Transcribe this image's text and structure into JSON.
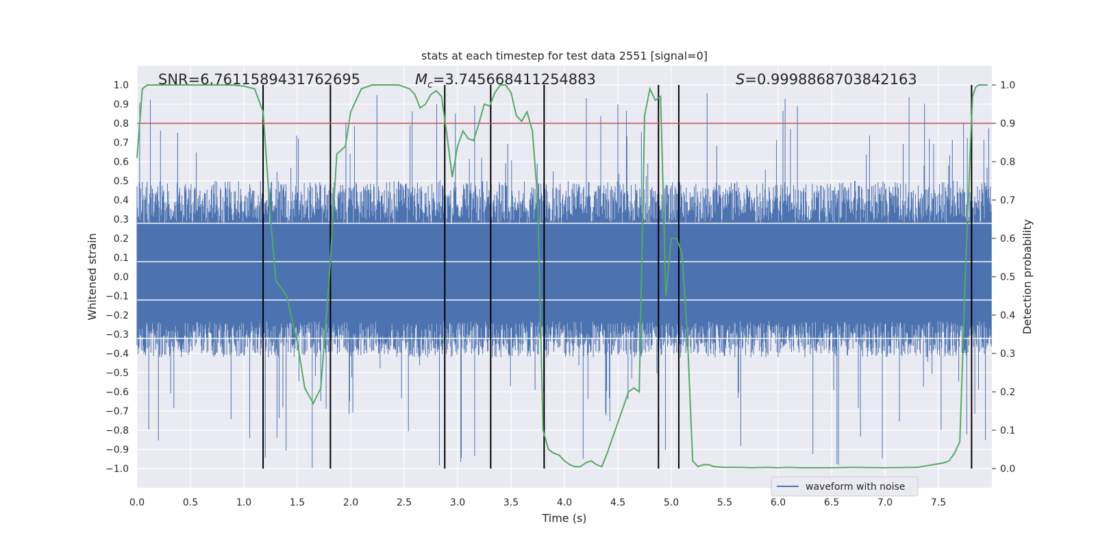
{
  "chart_data": {
    "type": "line",
    "title": "stats at each timestep for test data 2551 [signal=0]",
    "xlabel": "Time (s)",
    "ylabel": "Whitened strain",
    "y2label": "Detection probability",
    "xlim": [
      0.0,
      8.0
    ],
    "ylim": [
      -1.1,
      1.1
    ],
    "y2lim": [
      -0.05,
      1.05
    ],
    "xticks": [
      "0.0",
      "0.5",
      "1.0",
      "1.5",
      "2.0",
      "2.5",
      "3.0",
      "3.5",
      "4.0",
      "4.5",
      "5.0",
      "5.5",
      "6.0",
      "6.5",
      "7.0",
      "7.5"
    ],
    "yticks": [
      "1.0",
      "0.9",
      "0.8",
      "0.7",
      "0.6",
      "0.5",
      "0.4",
      "0.3",
      "0.2",
      "0.1",
      "0.0",
      "-0.1",
      "-0.2",
      "-0.3",
      "-0.4",
      "-0.5",
      "-0.6",
      "-0.7",
      "-0.8",
      "-0.9",
      "-1.0"
    ],
    "y2ticks": [
      "1.0",
      "0.9",
      "0.8",
      "0.7",
      "0.6",
      "0.5",
      "0.4",
      "0.3",
      "0.2",
      "0.1",
      "0.0"
    ],
    "grid": true,
    "annotations": {
      "snr": "SNR=6.7611589431762695",
      "mc_symbol": "M",
      "mc_sub": "c",
      "mc_value": "=3.745668411254883",
      "s_symbol": "S",
      "s_value": "=0.9998868703842163"
    },
    "threshold_y2": 0.9,
    "vertical_lines_x": [
      1.18,
      1.81,
      2.88,
      3.31,
      3.81,
      4.88,
      5.07,
      7.81
    ],
    "series": [
      {
        "name": "waveform with noise",
        "color": "#4c72b0",
        "x_range": [
          0.0,
          8.0
        ],
        "noise_envelope": {
          "typical": [
            -0.42,
            0.5
          ],
          "extreme": [
            -1.0,
            0.96
          ]
        }
      },
      {
        "name": "detection probability",
        "color": "#55a868",
        "axis": "right",
        "x": [
          0.0,
          0.05,
          0.1,
          0.2,
          0.3,
          0.5,
          0.7,
          0.9,
          1.0,
          1.1,
          1.18,
          1.25,
          1.3,
          1.4,
          1.5,
          1.57,
          1.65,
          1.72,
          1.8,
          1.87,
          1.95,
          2.0,
          2.1,
          2.2,
          2.3,
          2.4,
          2.45,
          2.5,
          2.55,
          2.6,
          2.65,
          2.7,
          2.75,
          2.8,
          2.85,
          2.9,
          2.95,
          3.0,
          3.05,
          3.1,
          3.15,
          3.2,
          3.25,
          3.3,
          3.35,
          3.4,
          3.45,
          3.5,
          3.55,
          3.6,
          3.65,
          3.7,
          3.75,
          3.8,
          3.85,
          3.9,
          3.95,
          4.0,
          4.05,
          4.1,
          4.15,
          4.2,
          4.25,
          4.3,
          4.35,
          4.4,
          4.5,
          4.6,
          4.65,
          4.7,
          4.75,
          4.8,
          4.85,
          4.9,
          4.95,
          5.0,
          5.05,
          5.1,
          5.15,
          5.2,
          5.25,
          5.3,
          5.35,
          5.4,
          5.5,
          5.55,
          5.65,
          5.75,
          5.9,
          6.0,
          6.1,
          6.2,
          6.3,
          6.5,
          6.7,
          7.0,
          7.3,
          7.45,
          7.55,
          7.6,
          7.65,
          7.7,
          7.73,
          7.75,
          7.78,
          7.8,
          7.82,
          7.85,
          7.88,
          7.92,
          7.96
        ],
        "values": [
          0.81,
          0.99,
          1.0,
          1.0,
          1.0,
          1.0,
          1.0,
          1.0,
          0.997,
          0.99,
          0.93,
          0.65,
          0.49,
          0.45,
          0.33,
          0.21,
          0.17,
          0.21,
          0.5,
          0.82,
          0.84,
          0.93,
          0.99,
          1.0,
          1.0,
          1.0,
          1.0,
          0.995,
          0.99,
          0.975,
          0.94,
          0.95,
          0.975,
          0.985,
          0.97,
          0.87,
          0.76,
          0.84,
          0.88,
          0.86,
          0.855,
          0.9,
          0.95,
          0.945,
          0.98,
          1.0,
          1.0,
          0.98,
          0.92,
          0.905,
          0.93,
          0.88,
          0.7,
          0.1,
          0.05,
          0.04,
          0.035,
          0.02,
          0.01,
          0.005,
          0.005,
          0.015,
          0.02,
          0.01,
          0.005,
          0.04,
          0.12,
          0.2,
          0.21,
          0.2,
          0.92,
          0.99,
          0.96,
          0.97,
          0.45,
          0.6,
          0.6,
          0.56,
          0.35,
          0.02,
          0.005,
          0.01,
          0.01,
          0.005,
          0.003,
          0.003,
          0.003,
          0.002,
          0.003,
          0.002,
          0.003,
          0.002,
          0.002,
          0.002,
          0.003,
          0.002,
          0.003,
          0.01,
          0.015,
          0.02,
          0.04,
          0.07,
          0.32,
          0.5,
          0.7,
          0.85,
          0.97,
          0.995,
          1.0,
          1.0,
          1.0
        ]
      }
    ]
  }
}
